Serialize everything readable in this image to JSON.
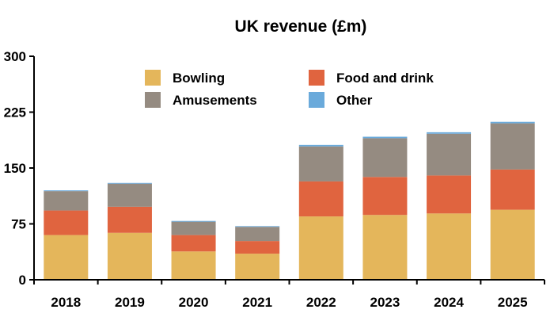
{
  "chart_data": {
    "type": "bar",
    "stacked": true,
    "title": "UK revenue (£m)",
    "xlabel": "",
    "ylabel": "",
    "categories": [
      "2018",
      "2019",
      "2020",
      "2021",
      "2022",
      "2023",
      "2024",
      "2025"
    ],
    "ylim": [
      0,
      300
    ],
    "yticks": [
      "0",
      "75",
      "150",
      "225",
      "300"
    ],
    "grid": false,
    "legend_position": "top",
    "series": [
      {
        "name": "Bowling",
        "color": "#e4b65b",
        "values": [
          60,
          63,
          38,
          35,
          85,
          87,
          89,
          94
        ]
      },
      {
        "name": "Food and drink",
        "color": "#e0643f",
        "values": [
          33,
          35,
          22,
          17,
          47,
          51,
          51,
          54
        ]
      },
      {
        "name": "Amusements",
        "color": "#958b81",
        "values": [
          26,
          31,
          18,
          19,
          47,
          52,
          56,
          62
        ]
      },
      {
        "name": "Other",
        "color": "#6aaadb",
        "values": [
          1,
          1,
          1,
          1,
          2,
          2,
          2,
          2
        ]
      }
    ]
  }
}
